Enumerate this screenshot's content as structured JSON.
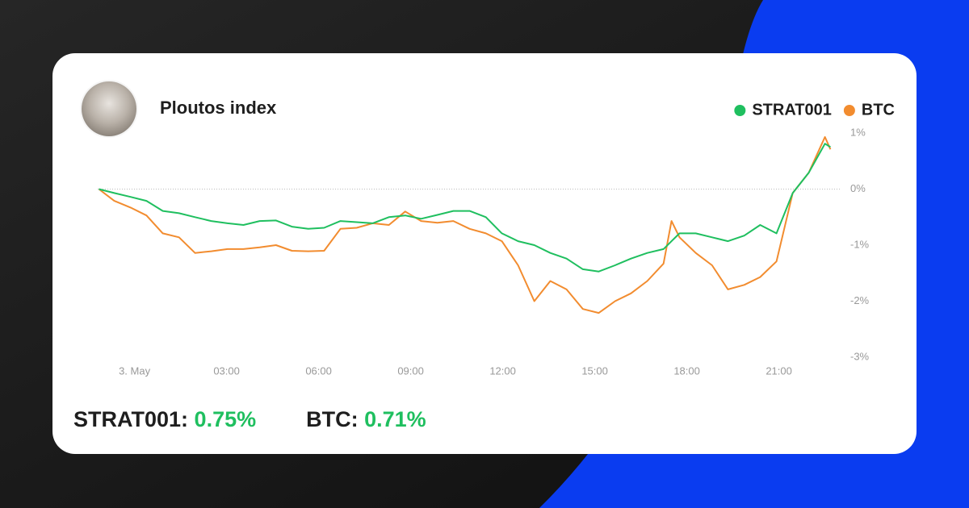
{
  "chart_data": {
    "type": "line",
    "title": "Ploutos index",
    "legend": "top-right",
    "grid": "zero",
    "x": [
      -1.16,
      -0.66,
      -0.13,
      0.39,
      0.92,
      1.45,
      1.97,
      2.5,
      3.03,
      3.55,
      4.08,
      4.61,
      5.13,
      5.66,
      6.18,
      6.71,
      7.24,
      7.76,
      8.29,
      8.82,
      9.34,
      9.87,
      10.39,
      10.92,
      11.45,
      11.97,
      12.5,
      13.03,
      13.55,
      14.08,
      14.61,
      15.13,
      15.66,
      16.18,
      16.71,
      17.24,
      17.5,
      17.76,
      18.29,
      18.82,
      19.34,
      19.87,
      20.39,
      20.92,
      21.45,
      21.97,
      22.5,
      22.68
    ],
    "xlim": [
      -1.2,
      22.8
    ],
    "xticks": [
      {
        "value": 0,
        "label": "3. May"
      },
      {
        "value": 3,
        "label": "03:00"
      },
      {
        "value": 6,
        "label": "06:00"
      },
      {
        "value": 9,
        "label": "09:00"
      },
      {
        "value": 12,
        "label": "12:00"
      },
      {
        "value": 15,
        "label": "15:00"
      },
      {
        "value": 18,
        "label": "18:00"
      },
      {
        "value": 21,
        "label": "21:00"
      }
    ],
    "ylim": [
      -3,
      1
    ],
    "yticks": [
      {
        "value": 1,
        "label": "1%"
      },
      {
        "value": 0,
        "label": "0%"
      },
      {
        "value": -1,
        "label": "-1%"
      },
      {
        "value": -2,
        "label": "-2%"
      },
      {
        "value": -3,
        "label": "-3%"
      }
    ],
    "series": [
      {
        "name": "STRAT001",
        "color": "#1fbf5f",
        "values": [
          0,
          -0.07,
          -0.14,
          -0.21,
          -0.39,
          -0.43,
          -0.5,
          -0.57,
          -0.61,
          -0.64,
          -0.57,
          -0.56,
          -0.67,
          -0.71,
          -0.69,
          -0.57,
          -0.59,
          -0.61,
          -0.5,
          -0.47,
          -0.53,
          -0.46,
          -0.39,
          -0.39,
          -0.5,
          -0.79,
          -0.93,
          -1.0,
          -1.14,
          -1.24,
          -1.43,
          -1.47,
          -1.36,
          -1.24,
          -1.14,
          -1.07,
          -0.93,
          -0.79,
          -0.79,
          -0.86,
          -0.93,
          -0.83,
          -0.64,
          -0.79,
          -0.07,
          0.29,
          0.81,
          0.75
        ]
      },
      {
        "name": "BTC",
        "color": "#f28c2f",
        "values": [
          0,
          -0.21,
          -0.33,
          -0.47,
          -0.79,
          -0.86,
          -1.14,
          -1.11,
          -1.07,
          -1.07,
          -1.04,
          -1.0,
          -1.1,
          -1.11,
          -1.1,
          -0.71,
          -0.69,
          -0.61,
          -0.64,
          -0.4,
          -0.57,
          -0.6,
          -0.57,
          -0.71,
          -0.79,
          -0.93,
          -1.36,
          -2.0,
          -1.64,
          -1.79,
          -2.14,
          -2.21,
          -2.0,
          -1.86,
          -1.64,
          -1.33,
          -0.57,
          -0.86,
          -1.14,
          -1.36,
          -1.79,
          -1.71,
          -1.57,
          -1.29,
          -0.07,
          0.29,
          0.93,
          0.71
        ]
      }
    ],
    "summary": [
      {
        "label": "STRAT001:",
        "value": 0.75,
        "value_label": "0.75%"
      },
      {
        "label": "BTC:",
        "value": 0.71,
        "value_label": "0.71%"
      }
    ]
  }
}
